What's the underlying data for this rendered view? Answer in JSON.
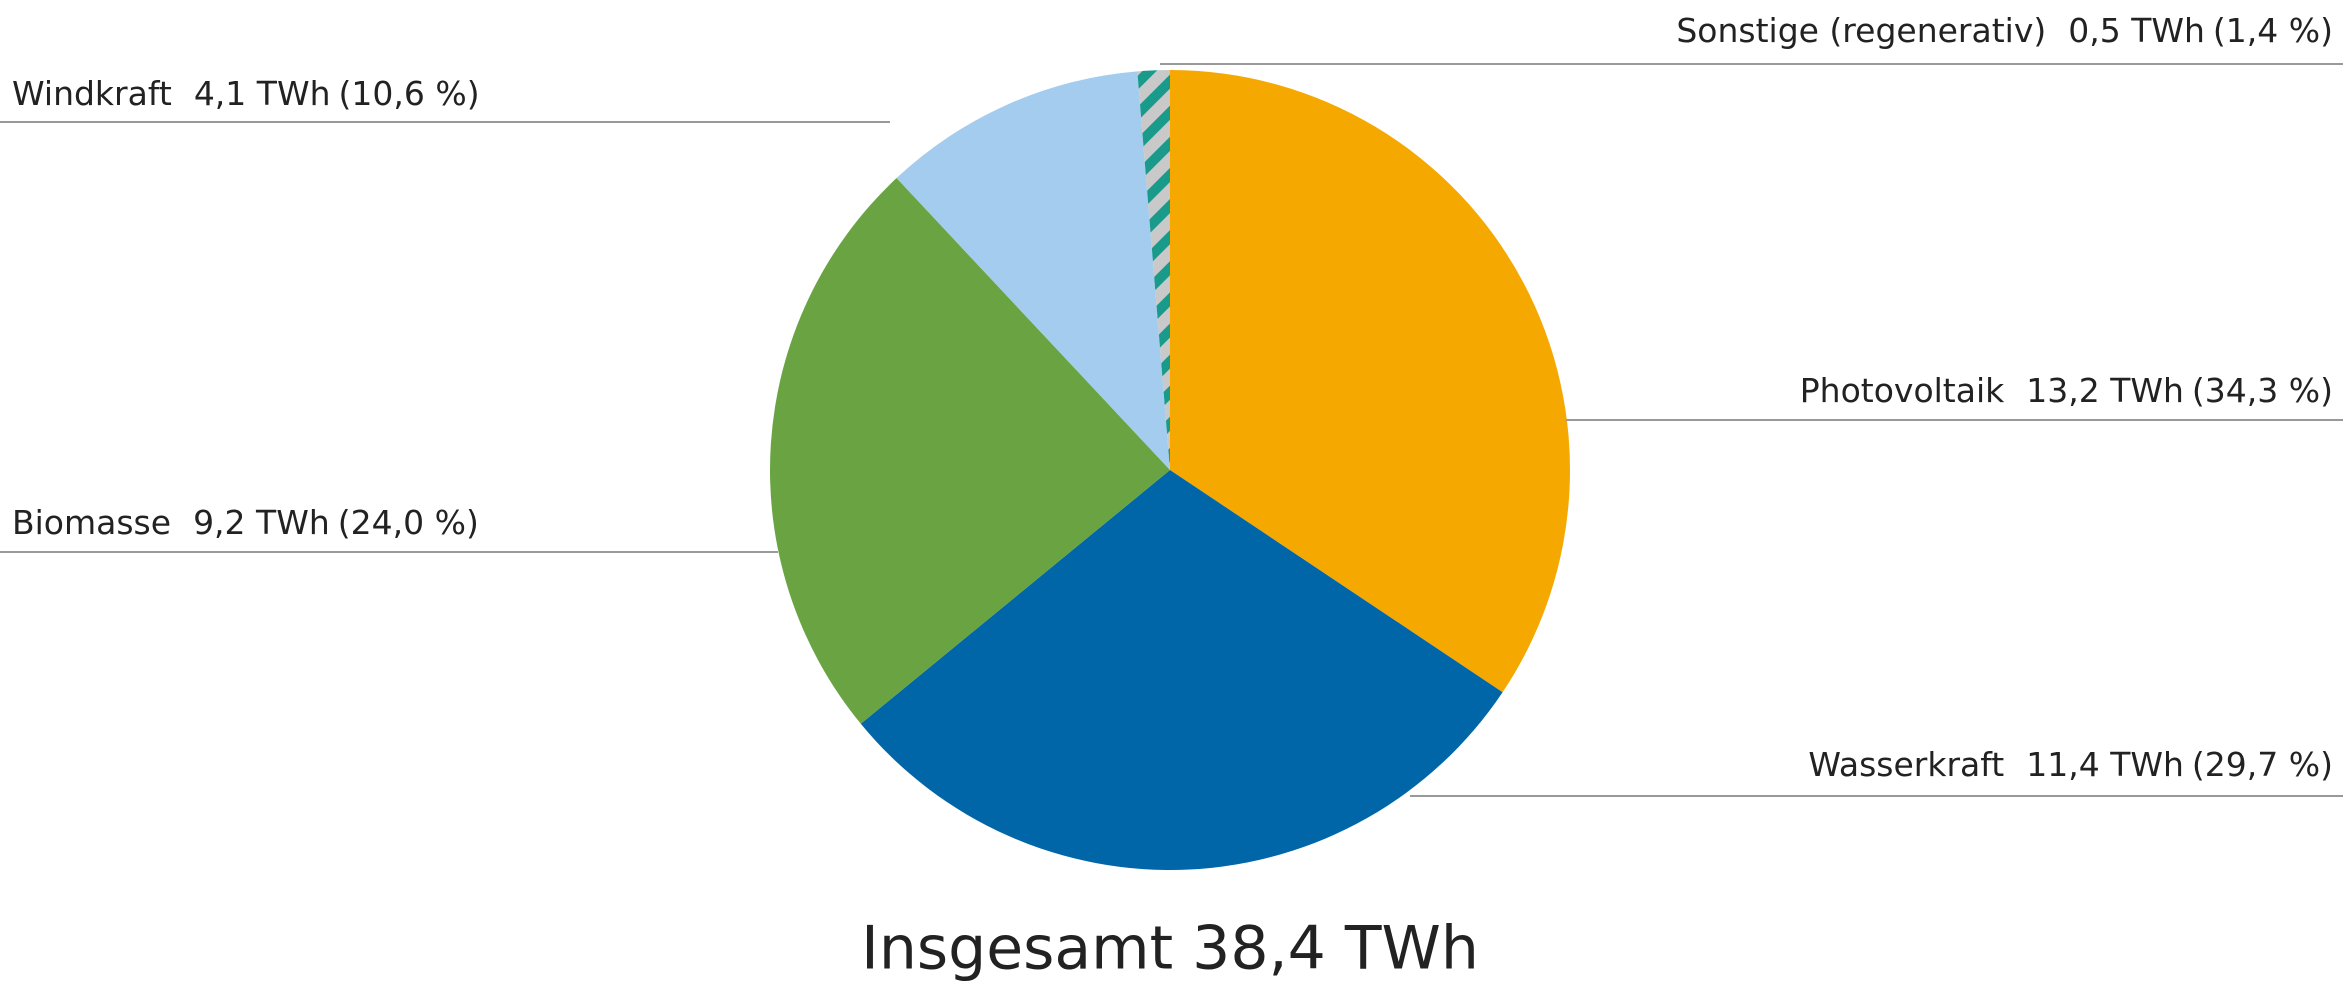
{
  "chart_data": {
    "type": "pie",
    "title": "Insgesamt 38,4 TWh",
    "categories": [
      "Photovoltaik",
      "Wasserkraft",
      "Biomasse",
      "Windkraft",
      "Sonstige (regenerativ)"
    ],
    "values": [
      13.2,
      11.4,
      9.2,
      4.1,
      0.5
    ],
    "value_labels": [
      "13,2 TWh",
      "11,4 TWh",
      "9,2 TWh",
      "4,1 TWh",
      "0,5 TWh"
    ],
    "shares": [
      34.3,
      29.7,
      24.0,
      10.6,
      1.4
    ],
    "share_labels": [
      "(34,3 %)",
      "(29,7 %)",
      "(24,0 %)",
      "(10,6 %)",
      "(1,4 %)"
    ],
    "colors": [
      "#f5a800",
      "#0066a8",
      "#6aa442",
      "#a3ccee",
      "#1a9a8a"
    ],
    "hatched": [
      false,
      false,
      false,
      false,
      true
    ]
  }
}
